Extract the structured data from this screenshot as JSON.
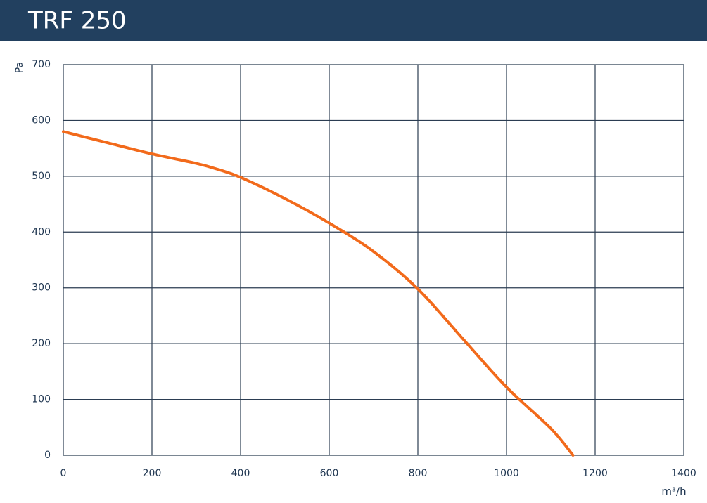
{
  "chart_data": {
    "type": "line",
    "title": "TRF 250",
    "x_label": "m³/h",
    "y_label": "Pa",
    "x": [
      0,
      100,
      200,
      300,
      350,
      400,
      500,
      600,
      700,
      800,
      900,
      1000,
      1100,
      1150
    ],
    "series": [
      {
        "name": "TRF 250",
        "color": "#f26a1b",
        "values": [
          580,
          560,
          540,
          523,
          512,
          498,
          460,
          416,
          365,
          298,
          210,
          122,
          48,
          0
        ]
      }
    ],
    "xlim": [
      0,
      1400
    ],
    "xticks": [
      0,
      200,
      400,
      600,
      800,
      1000,
      1200,
      1400
    ],
    "ylim": [
      0,
      700
    ],
    "yticks": [
      0,
      100,
      200,
      300,
      400,
      500,
      600,
      700
    ],
    "grid": true
  }
}
